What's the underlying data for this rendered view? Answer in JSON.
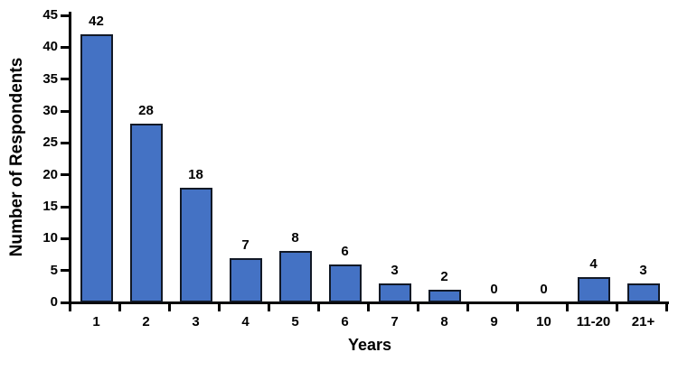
{
  "chart_data": {
    "type": "bar",
    "title": "",
    "xlabel": "Years",
    "ylabel": "Number of Respondents",
    "categories": [
      "1",
      "2",
      "3",
      "4",
      "5",
      "6",
      "7",
      "8",
      "9",
      "10",
      "11-20",
      "21+"
    ],
    "values": [
      42,
      28,
      18,
      7,
      8,
      6,
      3,
      2,
      0,
      0,
      4,
      3
    ],
    "ylim": [
      0,
      45
    ],
    "yticks": [
      0,
      5,
      10,
      15,
      20,
      25,
      30,
      35,
      40,
      45
    ],
    "data_labels": true,
    "grid": false,
    "legend": false,
    "bar_fill": "#4472C4",
    "bar_border": "#121926",
    "axis_color": "#000000",
    "text_color": "#000000",
    "background": "#FFFFFF"
  }
}
